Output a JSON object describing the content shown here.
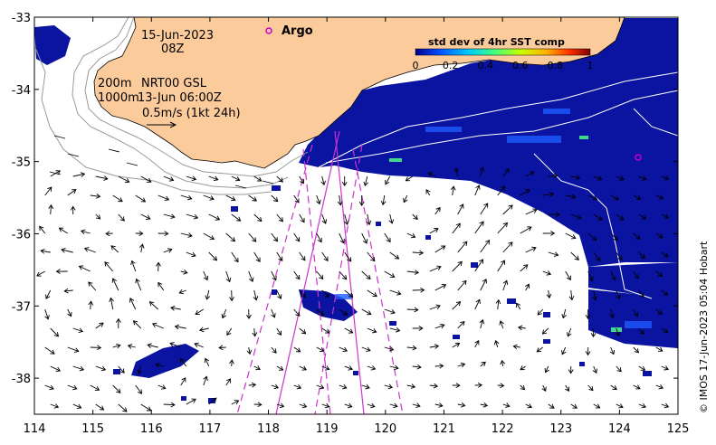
{
  "map": {
    "date": "15-Jun-2023",
    "time": "08Z",
    "argo_label": "Argo",
    "depth_200": "200m",
    "depth_1000": "1000m",
    "current_source": "NRT00 GSL",
    "current_time": "13-Jun 06:00Z",
    "scale_label": "0.5m/s (1kt 24h)",
    "credit": "© IMOS 17-Jun-2023 05:04 Hobart",
    "colors": {
      "land": "#fccb9c",
      "ocean": "#ffffff",
      "data_high": "#0a14a0",
      "track": "#cc33cc",
      "argo": "#cc00cc"
    }
  },
  "colorbar": {
    "title": "std dev of 4hr SST comp",
    "ticks": [
      "0",
      "0.2",
      "0.4",
      "0.6",
      "0.8",
      "1"
    ],
    "colormap": [
      "#00008f",
      "#0050ff",
      "#00c8ff",
      "#40ff80",
      "#c8ff00",
      "#ffb000",
      "#ff3000",
      "#800000"
    ]
  },
  "axes": {
    "x_ticks": [
      "114",
      "115",
      "116",
      "117",
      "118",
      "119",
      "120",
      "121",
      "122",
      "123",
      "124",
      "125"
    ],
    "y_ticks": [
      "-33",
      "-34",
      "-35",
      "-36",
      "-37",
      "-38"
    ],
    "xlim": [
      114,
      125
    ],
    "ylim": [
      -38.5,
      -33
    ]
  },
  "argo_floats": [
    {
      "lon": 124.3,
      "lat": -34.9
    }
  ]
}
